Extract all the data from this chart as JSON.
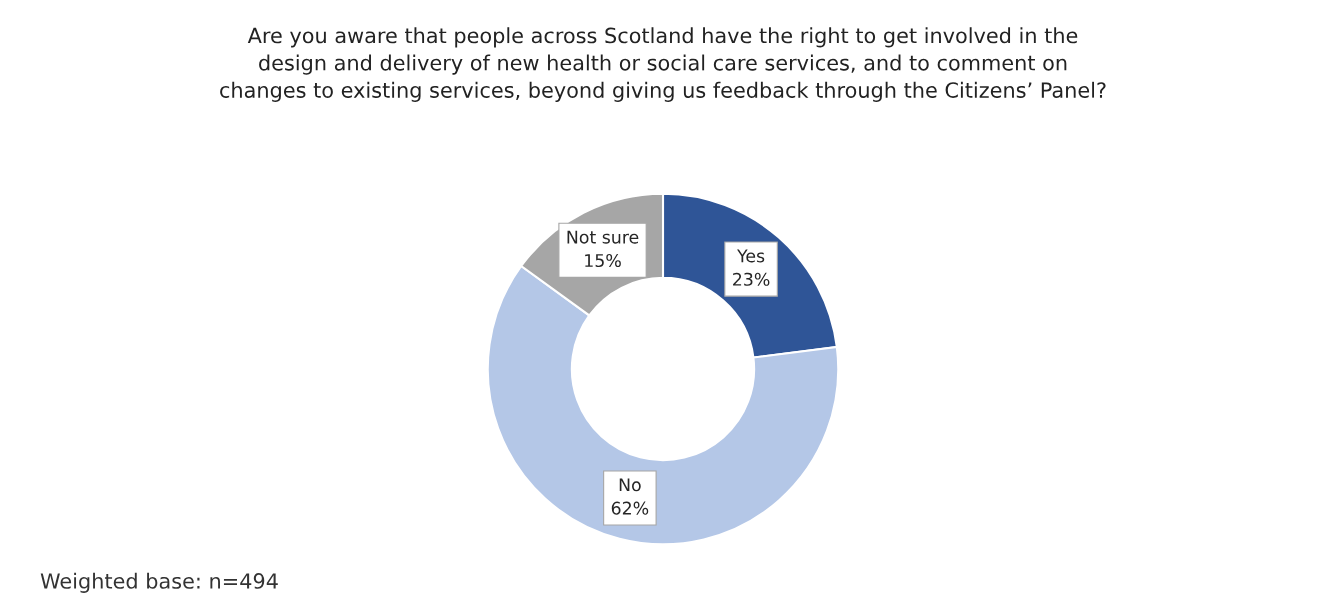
{
  "chart_data": {
    "type": "donut",
    "title": "Are you aware that people across Scotland have the right to get involved in the\ndesign and delivery of new health or social care services, and to comment on\nchanges to existing services, beyond giving us feedback through the Citizens’ Panel?",
    "categories": [
      "Yes",
      "No",
      "Not sure"
    ],
    "values": [
      23,
      62,
      15
    ],
    "value_labels": [
      "23%",
      "62%",
      "15%"
    ],
    "colors": [
      "#2f5597",
      "#b4c7e7",
      "#a6a6a6"
    ],
    "annotations": [
      "Weighted base: n=494"
    ]
  }
}
